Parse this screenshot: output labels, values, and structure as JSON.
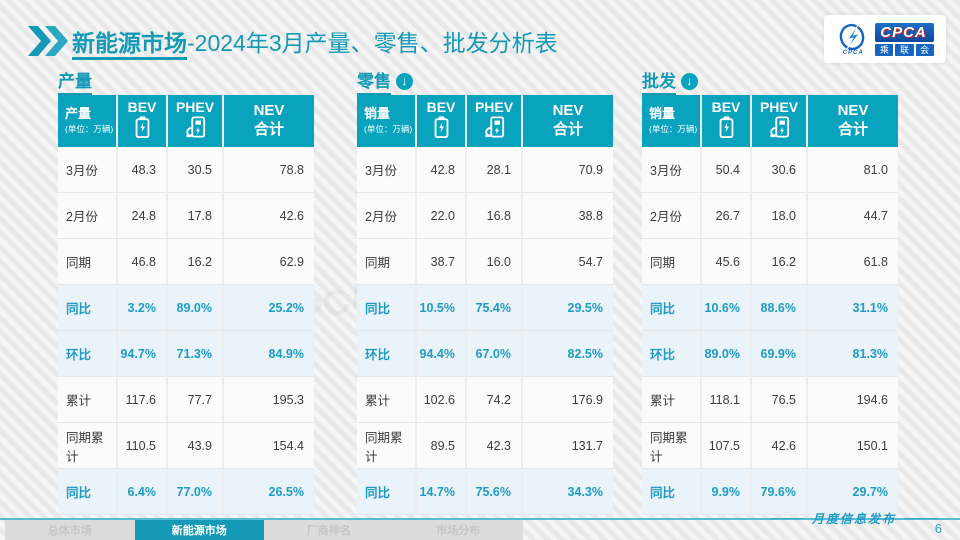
{
  "theme": {
    "accent": "#149ab6",
    "header_teal": "#09a3be",
    "highlight_text": "#1e9cc8",
    "highlight_bg": "#e9f3f9"
  },
  "header": {
    "title_highlight": "新能源市场",
    "title_rest": "-2024年3月产量、零售、批发分析表",
    "logo": {
      "acronym": "CPCA",
      "emblem_caption": "CPCA",
      "chars": [
        "乘",
        "联",
        "会"
      ]
    }
  },
  "watermark": "CPCA 乘联会",
  "arrow_icon_glyph": "↓",
  "tables": [
    {
      "section_title": "产量",
      "header": {
        "label": "产量",
        "unit": "(单位：万辆)",
        "bev": "BEV",
        "phev": "PHEV",
        "nev_line1": "NEV",
        "nev_line2": "合计"
      },
      "rows": [
        {
          "label": "3月份",
          "bev": "48.3",
          "phev": "30.5",
          "nev": "78.8",
          "pct": false
        },
        {
          "label": "2月份",
          "bev": "24.8",
          "phev": "17.8",
          "nev": "42.6",
          "pct": false
        },
        {
          "label": "同期",
          "bev": "46.8",
          "phev": "16.2",
          "nev": "62.9",
          "pct": false
        },
        {
          "label": "同比",
          "bev": "3.2%",
          "phev": "89.0%",
          "nev": "25.2%",
          "pct": true
        },
        {
          "label": "环比",
          "bev": "94.7%",
          "phev": "71.3%",
          "nev": "84.9%",
          "pct": true
        },
        {
          "label": "累计",
          "bev": "117.6",
          "phev": "77.7",
          "nev": "195.3",
          "pct": false
        },
        {
          "label": "同期累计",
          "bev": "110.5",
          "phev": "43.9",
          "nev": "154.4",
          "pct": false
        },
        {
          "label": "同比",
          "bev": "6.4%",
          "phev": "77.0%",
          "nev": "26.5%",
          "pct": true
        }
      ]
    },
    {
      "section_title": "零售",
      "header": {
        "label": "销量",
        "unit": "(单位：万辆)",
        "bev": "BEV",
        "phev": "PHEV",
        "nev_line1": "NEV",
        "nev_line2": "合计"
      },
      "rows": [
        {
          "label": "3月份",
          "bev": "42.8",
          "phev": "28.1",
          "nev": "70.9",
          "pct": false
        },
        {
          "label": "2月份",
          "bev": "22.0",
          "phev": "16.8",
          "nev": "38.8",
          "pct": false
        },
        {
          "label": "同期",
          "bev": "38.7",
          "phev": "16.0",
          "nev": "54.7",
          "pct": false
        },
        {
          "label": "同比",
          "bev": "10.5%",
          "phev": "75.4%",
          "nev": "29.5%",
          "pct": true
        },
        {
          "label": "环比",
          "bev": "94.4%",
          "phev": "67.0%",
          "nev": "82.5%",
          "pct": true
        },
        {
          "label": "累计",
          "bev": "102.6",
          "phev": "74.2",
          "nev": "176.9",
          "pct": false
        },
        {
          "label": "同期累计",
          "bev": "89.5",
          "phev": "42.3",
          "nev": "131.7",
          "pct": false
        },
        {
          "label": "同比",
          "bev": "14.7%",
          "phev": "75.6%",
          "nev": "34.3%",
          "pct": true
        }
      ]
    },
    {
      "section_title": "批发",
      "header": {
        "label": "销量",
        "unit": "(单位：万辆)",
        "bev": "BEV",
        "phev": "PHEV",
        "nev_line1": "NEV",
        "nev_line2": "合计"
      },
      "rows": [
        {
          "label": "3月份",
          "bev": "50.4",
          "phev": "30.6",
          "nev": "81.0",
          "pct": false
        },
        {
          "label": "2月份",
          "bev": "26.7",
          "phev": "18.0",
          "nev": "44.7",
          "pct": false
        },
        {
          "label": "同期",
          "bev": "45.6",
          "phev": "16.2",
          "nev": "61.8",
          "pct": false
        },
        {
          "label": "同比",
          "bev": "10.6%",
          "phev": "88.6%",
          "nev": "31.1%",
          "pct": true
        },
        {
          "label": "环比",
          "bev": "89.0%",
          "phev": "69.9%",
          "nev": "81.3%",
          "pct": true
        },
        {
          "label": "累计",
          "bev": "118.1",
          "phev": "76.5",
          "nev": "194.6",
          "pct": false
        },
        {
          "label": "同期累计",
          "bev": "107.5",
          "phev": "42.6",
          "nev": "150.1",
          "pct": false
        },
        {
          "label": "同比",
          "bev": "9.9%",
          "phev": "79.6%",
          "nev": "29.7%",
          "pct": true
        }
      ]
    }
  ],
  "footer": {
    "tabs": [
      {
        "label": "总体市场",
        "active": false
      },
      {
        "label": "新能源市场",
        "active": true
      },
      {
        "label": "厂商排名",
        "active": false
      },
      {
        "label": "市场分布",
        "active": false
      }
    ],
    "caption": "月度信息发布",
    "page_number": "6"
  }
}
